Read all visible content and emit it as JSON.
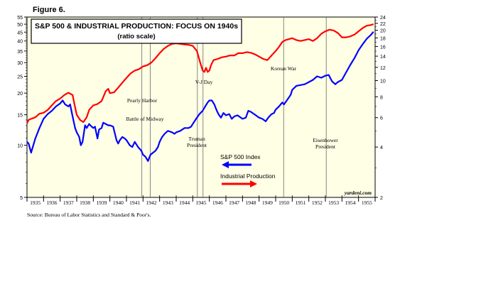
{
  "figure_label": "Figure 6.",
  "source": "Source: Bureau of Labor Statistics and Standard & Poor's.",
  "chart_data": {
    "type": "line",
    "title": "S&P 500 & INDUSTRIAL PRODUCTION: FOCUS ON 1940s",
    "subtitle": "(ratio scale)",
    "watermark": "yardeni.com",
    "x_range": [
      1935,
      1956
    ],
    "x_ticks": [
      "1935",
      "1936",
      "1937",
      "1938",
      "1939",
      "1940",
      "1941",
      "1942",
      "1943",
      "1944",
      "1945",
      "1946",
      "1947",
      "1948",
      "1949",
      "1950",
      "1951",
      "1952",
      "1953",
      "1954",
      "1955"
    ],
    "y_left": {
      "scale": "log",
      "range": [
        5,
        55
      ],
      "ticks": [
        5,
        10,
        15,
        20,
        25,
        30,
        35,
        40,
        45,
        50,
        55
      ],
      "tick_labels": [
        "5",
        "10",
        "15",
        "20",
        "25",
        "30",
        "35",
        "40",
        "45",
        "50",
        "55"
      ]
    },
    "y_right": {
      "scale": "log",
      "range": [
        2,
        24
      ],
      "ticks": [
        2,
        4,
        6,
        8,
        10,
        12,
        14,
        16,
        18,
        20,
        22,
        24
      ],
      "tick_labels": [
        "2",
        "4",
        "6",
        "8",
        "10",
        "12",
        "14",
        "16",
        "18",
        "20",
        "22",
        "24"
      ]
    },
    "grid": false,
    "legend_position": "center-right",
    "annotations": [
      {
        "text": [
          "Pearly Harbor"
        ],
        "x": 1941.93
      },
      {
        "text": [
          "Battle of Midway"
        ],
        "x": 1942.43
      },
      {
        "text": [
          "V-J Day"
        ],
        "x": 1945.62
      },
      {
        "text": [
          "Truman",
          "President"
        ],
        "x": 1945.28
      },
      {
        "text": [
          "Korean War"
        ],
        "x": 1950.48
      },
      {
        "text": [
          "Eisenhower",
          "President"
        ],
        "x": 1953.05
      }
    ],
    "series": [
      {
        "name": "S&P 500 Index",
        "axis": "right",
        "color": "#0000ff",
        "points": [
          [
            1935.0,
            4.3
          ],
          [
            1935.1,
            4.2
          ],
          [
            1935.25,
            3.7
          ],
          [
            1935.5,
            4.5
          ],
          [
            1935.75,
            5.2
          ],
          [
            1936.0,
            5.9
          ],
          [
            1936.25,
            6.3
          ],
          [
            1936.5,
            6.6
          ],
          [
            1936.75,
            7.0
          ],
          [
            1937.0,
            7.3
          ],
          [
            1937.15,
            7.6
          ],
          [
            1937.3,
            7.2
          ],
          [
            1937.5,
            7.0
          ],
          [
            1937.6,
            7.2
          ],
          [
            1937.75,
            6.1
          ],
          [
            1937.9,
            5.2
          ],
          [
            1938.0,
            4.9
          ],
          [
            1938.15,
            4.6
          ],
          [
            1938.25,
            4.1
          ],
          [
            1938.35,
            4.3
          ],
          [
            1938.5,
            5.4
          ],
          [
            1938.6,
            5.2
          ],
          [
            1938.75,
            5.5
          ],
          [
            1938.9,
            5.3
          ],
          [
            1939.0,
            5.2
          ],
          [
            1939.1,
            5.3
          ],
          [
            1939.25,
            4.5
          ],
          [
            1939.35,
            5.1
          ],
          [
            1939.5,
            5.2
          ],
          [
            1939.6,
            5.6
          ],
          [
            1939.75,
            5.5
          ],
          [
            1939.9,
            5.4
          ],
          [
            1940.0,
            5.4
          ],
          [
            1940.2,
            5.3
          ],
          [
            1940.4,
            4.4
          ],
          [
            1940.5,
            4.2
          ],
          [
            1940.6,
            4.4
          ],
          [
            1940.75,
            4.6
          ],
          [
            1940.9,
            4.5
          ],
          [
            1941.0,
            4.4
          ],
          [
            1941.2,
            4.1
          ],
          [
            1941.35,
            4.0
          ],
          [
            1941.5,
            4.3
          ],
          [
            1941.7,
            4.0
          ],
          [
            1941.9,
            3.8
          ],
          [
            1942.0,
            3.6
          ],
          [
            1942.15,
            3.5
          ],
          [
            1942.3,
            3.3
          ],
          [
            1942.45,
            3.6
          ],
          [
            1942.6,
            3.7
          ],
          [
            1942.75,
            3.8
          ],
          [
            1942.9,
            4.0
          ],
          [
            1943.0,
            4.3
          ],
          [
            1943.15,
            4.6
          ],
          [
            1943.3,
            4.8
          ],
          [
            1943.5,
            5.0
          ],
          [
            1943.75,
            4.9
          ],
          [
            1943.9,
            4.8
          ],
          [
            1944.0,
            4.9
          ],
          [
            1944.25,
            5.0
          ],
          [
            1944.5,
            5.2
          ],
          [
            1944.75,
            5.2
          ],
          [
            1944.9,
            5.3
          ],
          [
            1945.0,
            5.5
          ],
          [
            1945.2,
            5.9
          ],
          [
            1945.4,
            6.3
          ],
          [
            1945.6,
            6.6
          ],
          [
            1945.75,
            7.0
          ],
          [
            1945.9,
            7.4
          ],
          [
            1946.0,
            7.6
          ],
          [
            1946.15,
            7.6
          ],
          [
            1946.3,
            7.2
          ],
          [
            1946.45,
            6.6
          ],
          [
            1946.55,
            6.3
          ],
          [
            1946.7,
            6.0
          ],
          [
            1946.85,
            6.4
          ],
          [
            1947.0,
            6.2
          ],
          [
            1947.2,
            6.3
          ],
          [
            1947.35,
            5.9
          ],
          [
            1947.5,
            6.1
          ],
          [
            1947.7,
            6.2
          ],
          [
            1947.9,
            6.0
          ],
          [
            1948.0,
            5.9
          ],
          [
            1948.2,
            6.0
          ],
          [
            1948.35,
            6.6
          ],
          [
            1948.5,
            6.5
          ],
          [
            1948.7,
            6.3
          ],
          [
            1948.9,
            6.1
          ],
          [
            1949.0,
            6.0
          ],
          [
            1949.2,
            5.9
          ],
          [
            1949.4,
            5.7
          ],
          [
            1949.55,
            6.0
          ],
          [
            1949.75,
            6.3
          ],
          [
            1949.9,
            6.4
          ],
          [
            1950.0,
            6.7
          ],
          [
            1950.2,
            7.0
          ],
          [
            1950.4,
            7.4
          ],
          [
            1950.5,
            7.2
          ],
          [
            1950.75,
            7.8
          ],
          [
            1950.9,
            8.2
          ],
          [
            1951.0,
            8.8
          ],
          [
            1951.25,
            9.3
          ],
          [
            1951.5,
            9.4
          ],
          [
            1951.75,
            9.5
          ],
          [
            1952.0,
            9.8
          ],
          [
            1952.25,
            10.1
          ],
          [
            1952.5,
            10.6
          ],
          [
            1952.75,
            10.4
          ],
          [
            1953.0,
            10.7
          ],
          [
            1953.2,
            10.8
          ],
          [
            1953.4,
            9.9
          ],
          [
            1953.6,
            9.5
          ],
          [
            1953.75,
            9.8
          ],
          [
            1954.0,
            10.1
          ],
          [
            1954.25,
            11.2
          ],
          [
            1954.5,
            12.4
          ],
          [
            1954.75,
            13.6
          ],
          [
            1955.0,
            15.2
          ],
          [
            1955.25,
            16.5
          ],
          [
            1955.5,
            17.8
          ],
          [
            1955.75,
            18.8
          ],
          [
            1955.9,
            19.6
          ]
        ]
      },
      {
        "name": "Industrial Production",
        "axis": "left",
        "color": "#ff0000",
        "points": [
          [
            1935.0,
            13.4
          ],
          [
            1935.1,
            14.0
          ],
          [
            1935.25,
            14.2
          ],
          [
            1935.5,
            14.5
          ],
          [
            1935.75,
            15.2
          ],
          [
            1936.0,
            15.4
          ],
          [
            1936.25,
            16.0
          ],
          [
            1936.5,
            17.0
          ],
          [
            1936.75,
            18.0
          ],
          [
            1937.0,
            18.6
          ],
          [
            1937.25,
            19.5
          ],
          [
            1937.5,
            20.1
          ],
          [
            1937.75,
            19.5
          ],
          [
            1937.85,
            17.5
          ],
          [
            1938.0,
            15.0
          ],
          [
            1938.2,
            14.0
          ],
          [
            1938.4,
            13.6
          ],
          [
            1938.6,
            14.5
          ],
          [
            1938.75,
            16.0
          ],
          [
            1939.0,
            17.0
          ],
          [
            1939.25,
            17.3
          ],
          [
            1939.5,
            18.0
          ],
          [
            1939.75,
            20.5
          ],
          [
            1939.9,
            21.2
          ],
          [
            1940.0,
            20.0
          ],
          [
            1940.25,
            20.2
          ],
          [
            1940.5,
            21.5
          ],
          [
            1940.75,
            23.0
          ],
          [
            1941.0,
            24.5
          ],
          [
            1941.25,
            26.0
          ],
          [
            1941.5,
            27.0
          ],
          [
            1941.75,
            27.5
          ],
          [
            1942.0,
            28.5
          ],
          [
            1942.25,
            29.0
          ],
          [
            1942.5,
            30.0
          ],
          [
            1942.75,
            31.8
          ],
          [
            1943.0,
            34.0
          ],
          [
            1943.25,
            36.0
          ],
          [
            1943.5,
            37.5
          ],
          [
            1943.75,
            38.5
          ],
          [
            1944.0,
            38.8
          ],
          [
            1944.25,
            38.5
          ],
          [
            1944.5,
            38.2
          ],
          [
            1944.75,
            38.0
          ],
          [
            1945.0,
            37.5
          ],
          [
            1945.25,
            35.0
          ],
          [
            1945.45,
            30.0
          ],
          [
            1945.6,
            27.0
          ],
          [
            1945.7,
            26.5
          ],
          [
            1945.8,
            28.0
          ],
          [
            1945.9,
            26.5
          ],
          [
            1946.0,
            27.0
          ],
          [
            1946.1,
            29.0
          ],
          [
            1946.25,
            31.0
          ],
          [
            1946.5,
            31.5
          ],
          [
            1946.75,
            32.2
          ],
          [
            1947.0,
            32.5
          ],
          [
            1947.25,
            33.0
          ],
          [
            1947.5,
            33.0
          ],
          [
            1947.75,
            34.0
          ],
          [
            1948.0,
            34.0
          ],
          [
            1948.25,
            34.5
          ],
          [
            1948.5,
            34.2
          ],
          [
            1948.75,
            33.5
          ],
          [
            1949.0,
            32.5
          ],
          [
            1949.25,
            31.5
          ],
          [
            1949.5,
            31.0
          ],
          [
            1949.75,
            33.0
          ],
          [
            1950.0,
            35.0
          ],
          [
            1950.2,
            37.0
          ],
          [
            1950.4,
            39.5
          ],
          [
            1950.6,
            40.5
          ],
          [
            1950.8,
            41.0
          ],
          [
            1951.0,
            41.5
          ],
          [
            1951.25,
            40.5
          ],
          [
            1951.5,
            40.0
          ],
          [
            1951.75,
            40.5
          ],
          [
            1952.0,
            41.0
          ],
          [
            1952.25,
            40.0
          ],
          [
            1952.5,
            41.5
          ],
          [
            1952.75,
            44.0
          ],
          [
            1953.0,
            45.5
          ],
          [
            1953.25,
            46.5
          ],
          [
            1953.5,
            46.0
          ],
          [
            1953.75,
            44.5
          ],
          [
            1954.0,
            42.0
          ],
          [
            1954.25,
            42.0
          ],
          [
            1954.5,
            42.5
          ],
          [
            1954.75,
            43.5
          ],
          [
            1955.0,
            45.5
          ],
          [
            1955.25,
            47.5
          ],
          [
            1955.5,
            49.0
          ],
          [
            1955.75,
            49.5
          ],
          [
            1955.9,
            50.0
          ]
        ]
      }
    ]
  }
}
